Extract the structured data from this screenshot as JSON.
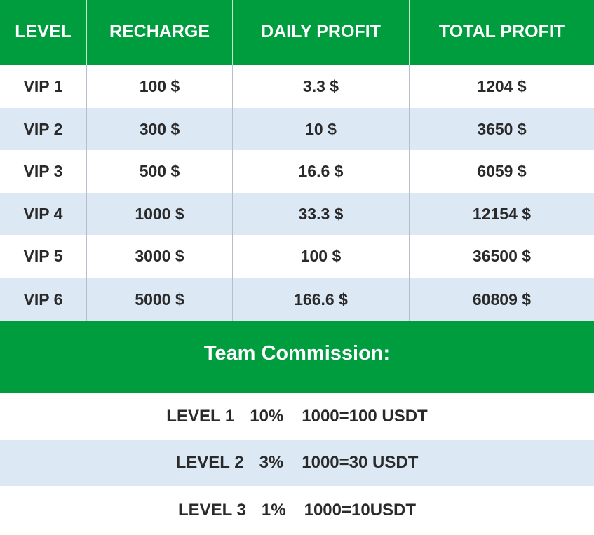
{
  "table": {
    "headers": [
      "LEVEL",
      "RECHARGE",
      "DAILY PROFIT",
      "TOTAL PROFIT"
    ],
    "rows": [
      {
        "level": "VIP 1",
        "recharge": "100 $",
        "daily_profit": "3.3 $",
        "total_profit": "1204 $"
      },
      {
        "level": "VIP 2",
        "recharge": "300 $",
        "daily_profit": "10 $",
        "total_profit": "3650 $"
      },
      {
        "level": "VIP 3",
        "recharge": "500 $",
        "daily_profit": "16.6 $",
        "total_profit": "6059 $"
      },
      {
        "level": "VIP 4",
        "recharge": "1000 $",
        "daily_profit": "33.3 $",
        "total_profit": "12154 $"
      },
      {
        "level": "VIP 5",
        "recharge": "3000 $",
        "daily_profit": "100 $",
        "total_profit": "36500 $"
      },
      {
        "level": "VIP 6",
        "recharge": "5000 $",
        "daily_profit": "166.6 $",
        "total_profit": "60809 $"
      }
    ]
  },
  "team_commission": {
    "title": "Team Commission:",
    "levels": [
      {
        "level": "LEVEL 1",
        "percent": "10%",
        "example": "1000=100 USDT"
      },
      {
        "level": "LEVEL 2",
        "percent": "3%",
        "example": "1000=30 USDT"
      },
      {
        "level": "LEVEL 3",
        "percent": "1%",
        "example": "1000=10USDT"
      }
    ]
  },
  "colors": {
    "header_green": "#009d3f",
    "row_alt": "#dde8f5",
    "row_plain": "#ffffff",
    "text_dark": "#2a2a2a"
  }
}
